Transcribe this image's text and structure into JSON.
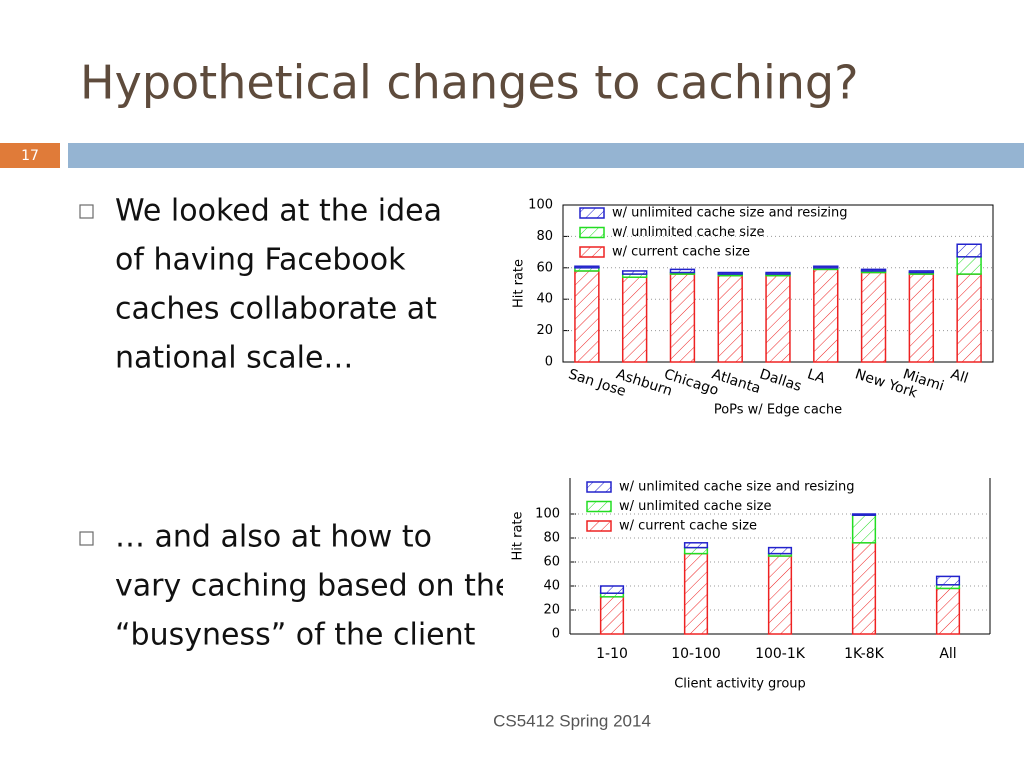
{
  "title": "Hypothetical changes to caching?",
  "slide_number": "17",
  "bullets": [
    [
      "We looked at the idea",
      "of having Facebook",
      "caches collaborate at",
      "national scale…"
    ],
    [
      "… and also at how to",
      "vary caching based on the",
      "“busyness” of the client"
    ]
  ],
  "footer": "CS5412 Spring 2014",
  "chart_data": [
    {
      "type": "bar",
      "stacked": true,
      "ylabel": "Hit rate",
      "xlabel": "PoPs w/ Edge cache",
      "categories": [
        "San Jose",
        "Ashburn",
        "Chicago",
        "Atlanta",
        "Dallas",
        "LA",
        "New York",
        "Miami",
        "All"
      ],
      "series": [
        {
          "name": "w/ current cache size",
          "color": "#ee2222",
          "values": [
            58,
            54,
            56,
            55,
            55,
            59,
            57,
            56,
            56
          ]
        },
        {
          "name": "w/ unlimited cache size",
          "color": "#22dd22",
          "values": [
            2,
            2,
            1,
            1,
            1,
            1,
            1,
            1,
            11
          ]
        },
        {
          "name": "w/ unlimited cache size and resizing",
          "color": "#2222cc",
          "values": [
            1,
            2,
            2,
            1,
            1,
            1,
            1,
            1,
            8
          ]
        }
      ],
      "ylim": [
        0,
        100
      ],
      "yticks": [
        0,
        20,
        40,
        60,
        80,
        100
      ],
      "grid": true
    },
    {
      "type": "bar",
      "stacked": true,
      "ylabel": "Hit rate",
      "xlabel": "Client activity group",
      "categories": [
        "1-10",
        "10-100",
        "100-1K",
        "1K-8K",
        "All"
      ],
      "series": [
        {
          "name": "w/ current cache size",
          "color": "#ee2222",
          "values": [
            31,
            67,
            65,
            76,
            38
          ]
        },
        {
          "name": "w/ unlimited cache size",
          "color": "#22dd22",
          "values": [
            3,
            5,
            2,
            23,
            3
          ]
        },
        {
          "name": "w/ unlimited cache size and resizing",
          "color": "#2222cc",
          "values": [
            6,
            4,
            5,
            1,
            7
          ]
        }
      ],
      "ylim": [
        0,
        130
      ],
      "yticks": [
        0,
        20,
        40,
        60,
        80,
        100
      ],
      "grid": true
    }
  ]
}
